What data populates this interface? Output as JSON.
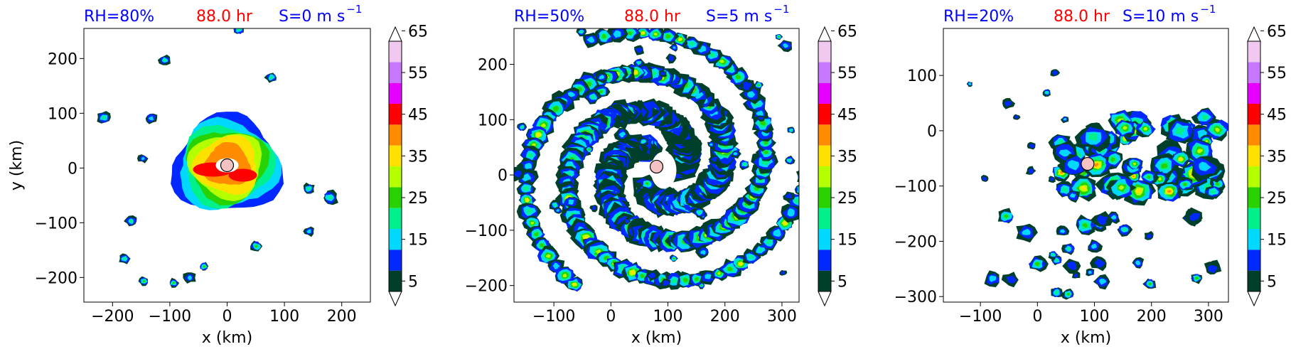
{
  "colorbar_levels": [
    "5",
    "15",
    "25",
    "35",
    "45",
    "55",
    "65"
  ],
  "colorbar_colors": [
    "#00402a",
    "#0028ff",
    "#00d8ff",
    "#00f08c",
    "#28d200",
    "#b4ff00",
    "#ffe100",
    "#ff8c00",
    "#ff0000",
    "#e600ff",
    "#c878ff",
    "#f0c8f0"
  ],
  "panels": [
    {
      "label_rh": "RH=80%",
      "label_time": "88.0 hr",
      "label_shear": "S=0 m s",
      "label_shear_exp": "−1",
      "xlabel": "x (km)",
      "ylabel": "y (km)",
      "xlim": [
        -250,
        250
      ],
      "ylim": [
        -245,
        255
      ],
      "xticks": [
        {
          "v": -200,
          "t": "−200"
        },
        {
          "v": -100,
          "t": "−100"
        },
        {
          "v": 0,
          "t": "0"
        },
        {
          "v": 100,
          "t": "100"
        },
        {
          "v": 200,
          "t": "200"
        }
      ],
      "yticks": [
        {
          "v": -200,
          "t": "−200"
        },
        {
          "v": -100,
          "t": "−100"
        },
        {
          "v": 0,
          "t": "0"
        },
        {
          "v": 100,
          "t": "100"
        },
        {
          "v": 200,
          "t": "200"
        }
      ],
      "center": [
        0,
        5
      ],
      "structure": "symmetric"
    },
    {
      "label_rh": "RH=50%",
      "label_time": "88.0 hr",
      "label_shear": "S=5 m s",
      "label_shear_exp": "−1",
      "xlabel": "x (km)",
      "ylabel": "",
      "xlim": [
        -170,
        330
      ],
      "ylim": [
        -230,
        265
      ],
      "xticks": [
        {
          "v": -100,
          "t": "−100"
        },
        {
          "v": 0,
          "t": "0"
        },
        {
          "v": 100,
          "t": "100"
        },
        {
          "v": 200,
          "t": "200"
        },
        {
          "v": 300,
          "t": "300"
        }
      ],
      "yticks": [
        {
          "v": -200,
          "t": "−200"
        },
        {
          "v": -100,
          "t": "−100"
        },
        {
          "v": 0,
          "t": "0"
        },
        {
          "v": 100,
          "t": "100"
        },
        {
          "v": 200,
          "t": "200"
        }
      ],
      "center": [
        80,
        15
      ],
      "structure": "spiral"
    },
    {
      "label_rh": "RH=20%",
      "label_time": "88.0 hr",
      "label_shear": "S=10 m s",
      "label_shear_exp": "−1",
      "xlabel": "x (km)",
      "ylabel": "",
      "xlim": [
        -165,
        335
      ],
      "ylim": [
        -310,
        185
      ],
      "xticks": [
        {
          "v": -100,
          "t": "−100"
        },
        {
          "v": 0,
          "t": "0"
        },
        {
          "v": 100,
          "t": "100"
        },
        {
          "v": 200,
          "t": "200"
        },
        {
          "v": 300,
          "t": "300"
        }
      ],
      "yticks": [
        {
          "v": -300,
          "t": "−300"
        },
        {
          "v": -200,
          "t": "−200"
        },
        {
          "v": -100,
          "t": "−100"
        },
        {
          "v": 0,
          "t": "0"
        },
        {
          "v": 100,
          "t": "100"
        }
      ],
      "center": [
        88,
        -60
      ],
      "structure": "sheared"
    }
  ],
  "chart_data": [
    {
      "type": "heatmap",
      "series": [
        {
          "values": [
            5,
            15,
            25,
            35,
            45,
            55,
            65
          ]
        }
      ],
      "xlabel": "x (km)",
      "ylabel": "y (km)",
      "xlim": [
        -250,
        250
      ],
      "ylim": [
        -245,
        255
      ],
      "storm_center": [
        0,
        5
      ]
    },
    {
      "type": "heatmap",
      "series": [
        {
          "values": [
            5,
            15,
            25,
            35,
            45,
            55,
            65
          ]
        }
      ],
      "xlabel": "x (km)",
      "ylabel": "",
      "xlim": [
        -170,
        330
      ],
      "ylim": [
        -230,
        265
      ],
      "storm_center": [
        80,
        15
      ]
    },
    {
      "type": "heatmap",
      "series": [
        {
          "values": [
            5,
            15,
            25,
            35,
            45,
            55,
            65
          ]
        }
      ],
      "xlabel": "x (km)",
      "ylabel": "",
      "xlim": [
        -165,
        335
      ],
      "ylim": [
        -310,
        185
      ],
      "storm_center": [
        88,
        -60
      ]
    }
  ]
}
